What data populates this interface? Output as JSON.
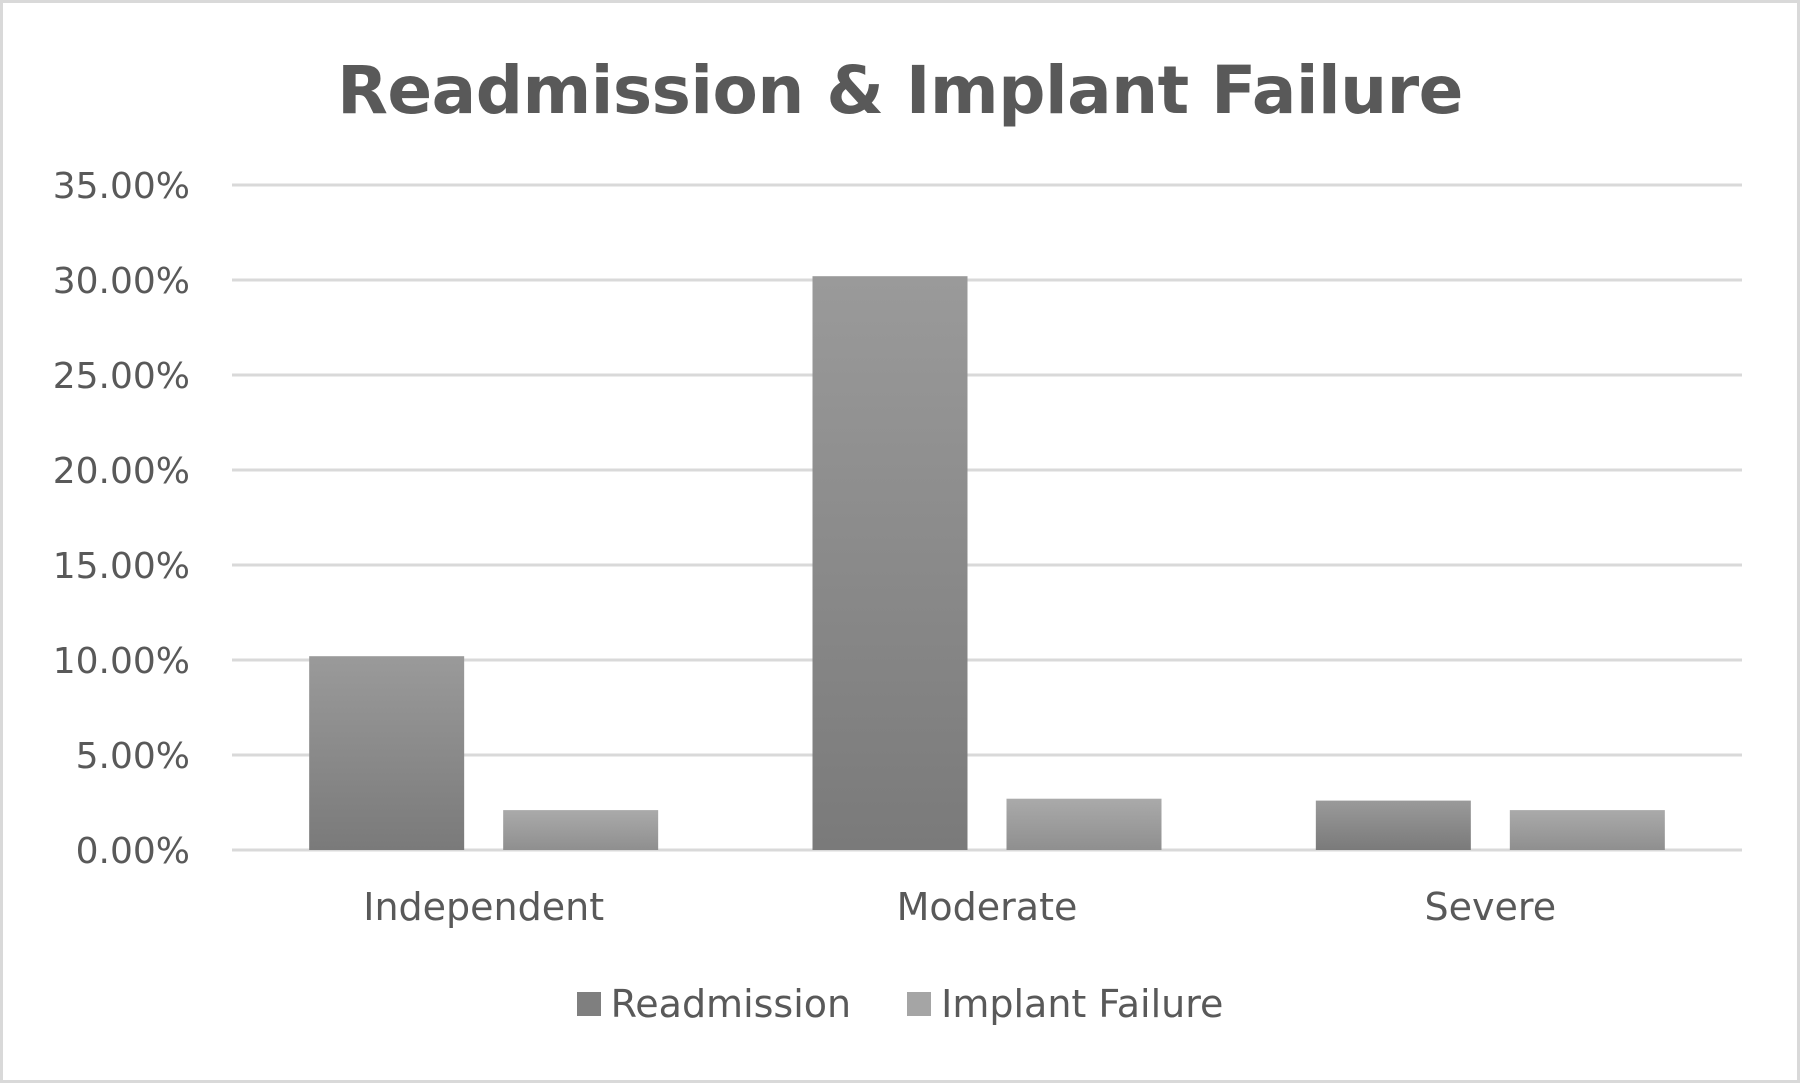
{
  "chart_data": {
    "type": "bar",
    "title": "Readmission & Implant Failure",
    "categories": [
      "Independent",
      "Moderate",
      "Severe"
    ],
    "series": [
      {
        "name": "Readmission",
        "values": [
          10.2,
          30.2,
          2.6
        ],
        "color": "#7f7f7f"
      },
      {
        "name": "Implant Failure",
        "values": [
          2.1,
          2.7,
          2.1
        ],
        "color": "#a5a5a5"
      }
    ],
    "yticks": [
      "0.00%",
      "5.00%",
      "10.00%",
      "15.00%",
      "20.00%",
      "25.00%",
      "30.00%",
      "35.00%"
    ],
    "ylim": [
      0,
      35
    ],
    "grid": true,
    "legend_position": "bottom",
    "xlabel": "",
    "ylabel": ""
  }
}
